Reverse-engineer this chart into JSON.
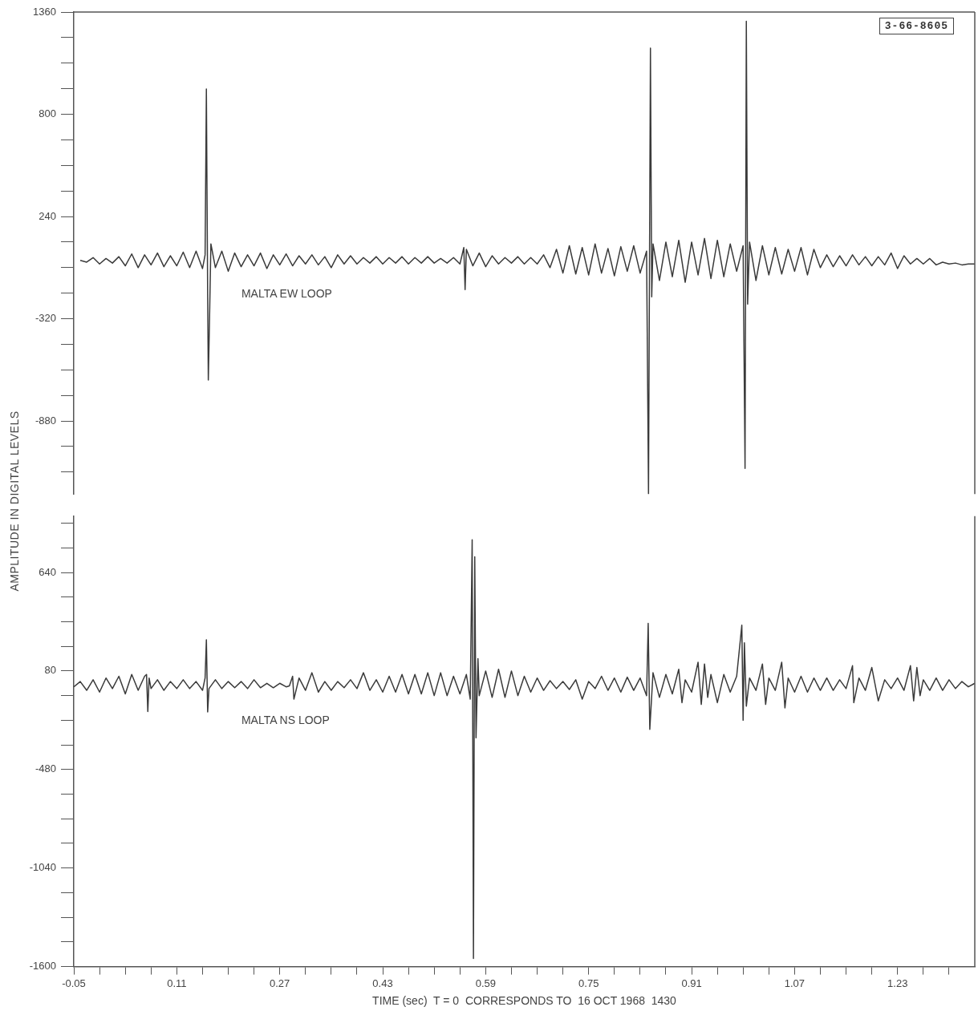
{
  "chart_data": [
    {
      "type": "line",
      "ylabel": "AMPLITUDE IN DIGITAL LEVELS",
      "annotations": [
        "3-66-8605"
      ],
      "tick_labels": "y",
      "marker": "none",
      "line_style": "solid",
      "grid": false,
      "legend": false,
      "xlim": [
        -0.05,
        1.35
      ],
      "ylim": [
        -1280,
        1360
      ],
      "yticks": [
        1360,
        {
          "value": 1220,
          "label": null
        },
        {
          "value": 1080,
          "label": null
        },
        {
          "value": 940,
          "label": null
        },
        800,
        {
          "value": 660,
          "label": null
        },
        {
          "value": 520,
          "label": null
        },
        {
          "value": 380,
          "label": null
        },
        240,
        {
          "value": 100,
          "label": null
        },
        {
          "value": -40,
          "label": null
        },
        {
          "value": -180,
          "label": null
        },
        -320,
        {
          "value": -460,
          "label": null
        },
        {
          "value": -600,
          "label": null
        },
        {
          "value": -740,
          "label": null
        },
        -880,
        {
          "value": -1020,
          "label": null
        },
        {
          "value": -1160,
          "label": null
        }
      ],
      "x": [
        -0.04,
        -0.03,
        -0.02,
        -0.01,
        0,
        0.01,
        0.02,
        0.03,
        0.04,
        0.05,
        0.06,
        0.07,
        0.08,
        0.09,
        0.1,
        0.11,
        0.12,
        0.13,
        0.14,
        0.15,
        0.154,
        0.156,
        0.158,
        0.159,
        0.161,
        0.163,
        0.17,
        0.18,
        0.19,
        0.2,
        0.21,
        0.22,
        0.23,
        0.24,
        0.25,
        0.26,
        0.27,
        0.28,
        0.29,
        0.3,
        0.31,
        0.32,
        0.33,
        0.34,
        0.35,
        0.36,
        0.37,
        0.38,
        0.39,
        0.4,
        0.41,
        0.42,
        0.43,
        0.44,
        0.45,
        0.46,
        0.47,
        0.48,
        0.49,
        0.5,
        0.51,
        0.52,
        0.53,
        0.54,
        0.55,
        0.556,
        0.558,
        0.56,
        0.57,
        0.58,
        0.59,
        0.6,
        0.61,
        0.62,
        0.63,
        0.64,
        0.65,
        0.66,
        0.67,
        0.68,
        0.69,
        0.7,
        0.71,
        0.72,
        0.73,
        0.74,
        0.75,
        0.76,
        0.77,
        0.78,
        0.79,
        0.8,
        0.81,
        0.82,
        0.83,
        0.84,
        0.843,
        0.846,
        0.848,
        0.85,
        0.86,
        0.87,
        0.88,
        0.89,
        0.9,
        0.91,
        0.92,
        0.93,
        0.94,
        0.95,
        0.96,
        0.97,
        0.98,
        0.99,
        0.993,
        0.995,
        0.997,
        1,
        1.01,
        1.02,
        1.03,
        1.04,
        1.05,
        1.06,
        1.07,
        1.08,
        1.09,
        1.1,
        1.11,
        1.12,
        1.13,
        1.14,
        1.15,
        1.16,
        1.17,
        1.18,
        1.19,
        1.2,
        1.21,
        1.22,
        1.23,
        1.24,
        1.25,
        1.26,
        1.27,
        1.28,
        1.29,
        1.3,
        1.31,
        1.32,
        1.33,
        1.34,
        1.35
      ],
      "series": [
        {
          "name": "MALTA EW LOOP",
          "color": "#3a3a3a",
          "values": [
            0,
            -10,
            15,
            -20,
            10,
            -15,
            20,
            -30,
            35,
            -40,
            30,
            -25,
            40,
            -35,
            25,
            -30,
            45,
            -40,
            50,
            -45,
            30,
            938,
            -200,
            -656,
            -300,
            90,
            -40,
            50,
            -60,
            40,
            -35,
            30,
            -30,
            40,
            -45,
            30,
            -25,
            35,
            -30,
            25,
            -20,
            30,
            -25,
            20,
            -40,
            30,
            -20,
            25,
            -20,
            15,
            -15,
            20,
            -20,
            15,
            -15,
            20,
            -20,
            15,
            -15,
            20,
            -15,
            10,
            -15,
            15,
            -20,
            70,
            -160,
            60,
            -30,
            40,
            -35,
            25,
            -20,
            15,
            -15,
            20,
            -20,
            15,
            -20,
            30,
            -40,
            60,
            -70,
            80,
            -75,
            70,
            -80,
            90,
            -70,
            65,
            -85,
            75,
            -60,
            80,
            -70,
            50,
            -1280,
            1162,
            -200,
            90,
            -110,
            100,
            -90,
            110,
            -120,
            100,
            -80,
            120,
            -100,
            110,
            -90,
            90,
            -60,
            80,
            -1140,
            1309,
            -240,
            100,
            -110,
            80,
            -80,
            70,
            -75,
            60,
            -60,
            70,
            -80,
            60,
            -40,
            30,
            -35,
            25,
            -30,
            30,
            -25,
            20,
            -30,
            20,
            -25,
            40,
            -45,
            25,
            -20,
            10,
            -20,
            10,
            -25,
            -10,
            -20,
            -15,
            -25,
            -20,
            -20
          ]
        }
      ]
    },
    {
      "type": "line",
      "xlabel": "TIME (sec)  T = 0  CORRESPONDS TO  16 OCT 1968  1430",
      "marker": "none",
      "line_style": "solid",
      "grid": false,
      "legend": false,
      "xlim": [
        -0.05,
        1.35
      ],
      "ylim": [
        -1600,
        960
      ],
      "xticks": [
        -0.05,
        {
          "value": -0.01,
          "label": null
        },
        {
          "value": 0.03,
          "label": null
        },
        {
          "value": 0.07,
          "label": null
        },
        0.11,
        {
          "value": 0.15,
          "label": null
        },
        {
          "value": 0.19,
          "label": null
        },
        {
          "value": 0.23,
          "label": null
        },
        0.27,
        {
          "value": 0.31,
          "label": null
        },
        {
          "value": 0.35,
          "label": null
        },
        {
          "value": 0.39,
          "label": null
        },
        0.43,
        {
          "value": 0.47,
          "label": null
        },
        {
          "value": 0.51,
          "label": null
        },
        {
          "value": 0.55,
          "label": null
        },
        0.59,
        {
          "value": 0.63,
          "label": null
        },
        {
          "value": 0.67,
          "label": null
        },
        {
          "value": 0.71,
          "label": null
        },
        0.75,
        {
          "value": 0.79,
          "label": null
        },
        {
          "value": 0.83,
          "label": null
        },
        {
          "value": 0.87,
          "label": null
        },
        0.91,
        {
          "value": 0.95,
          "label": null
        },
        {
          "value": 0.99,
          "label": null
        },
        {
          "value": 1.03,
          "label": null
        },
        1.07,
        {
          "value": 1.11,
          "label": null
        },
        {
          "value": 1.15,
          "label": null
        },
        {
          "value": 1.19,
          "label": null
        },
        1.23,
        {
          "value": 1.27,
          "label": null
        },
        {
          "value": 1.31,
          "label": null
        }
      ],
      "yticks": [
        {
          "value": 920,
          "label": null
        },
        {
          "value": 780,
          "label": null
        },
        640,
        {
          "value": 500,
          "label": null
        },
        {
          "value": 360,
          "label": null
        },
        {
          "value": 220,
          "label": null
        },
        80,
        {
          "value": -60,
          "label": null
        },
        {
          "value": -200,
          "label": null
        },
        {
          "value": -340,
          "label": null
        },
        -480,
        {
          "value": -620,
          "label": null
        },
        {
          "value": -760,
          "label": null
        },
        {
          "value": -900,
          "label": null
        },
        -1040,
        {
          "value": -1180,
          "label": null
        },
        {
          "value": -1320,
          "label": null
        },
        {
          "value": -1460,
          "label": null
        },
        -1600
      ],
      "x": [
        -0.05,
        -0.04,
        -0.03,
        -0.02,
        -0.01,
        0,
        0.01,
        0.02,
        0.03,
        0.04,
        0.05,
        0.06,
        0.063,
        0.065,
        0.067,
        0.07,
        0.08,
        0.09,
        0.1,
        0.11,
        0.12,
        0.13,
        0.14,
        0.15,
        0.154,
        0.156,
        0.158,
        0.16,
        0.17,
        0.18,
        0.19,
        0.2,
        0.21,
        0.22,
        0.23,
        0.24,
        0.25,
        0.26,
        0.27,
        0.28,
        0.285,
        0.29,
        0.292,
        0.3,
        0.31,
        0.32,
        0.33,
        0.34,
        0.35,
        0.36,
        0.37,
        0.38,
        0.39,
        0.4,
        0.41,
        0.42,
        0.43,
        0.44,
        0.45,
        0.46,
        0.47,
        0.48,
        0.49,
        0.5,
        0.51,
        0.52,
        0.53,
        0.54,
        0.55,
        0.56,
        0.566,
        0.569,
        0.571,
        0.573,
        0.575,
        0.578,
        0.58,
        0.59,
        0.6,
        0.61,
        0.62,
        0.63,
        0.64,
        0.65,
        0.66,
        0.67,
        0.68,
        0.69,
        0.7,
        0.71,
        0.72,
        0.73,
        0.74,
        0.75,
        0.76,
        0.77,
        0.78,
        0.79,
        0.8,
        0.81,
        0.82,
        0.83,
        0.84,
        0.8425,
        0.845,
        0.85,
        0.86,
        0.87,
        0.88,
        0.89,
        0.895,
        0.9,
        0.91,
        0.92,
        0.925,
        0.93,
        0.935,
        0.94,
        0.95,
        0.96,
        0.97,
        0.98,
        0.988,
        0.99,
        0.992,
        0.995,
        1,
        1.01,
        1.02,
        1.025,
        1.03,
        1.04,
        1.05,
        1.055,
        1.06,
        1.07,
        1.08,
        1.09,
        1.1,
        1.11,
        1.12,
        1.13,
        1.14,
        1.15,
        1.16,
        1.162,
        1.17,
        1.18,
        1.19,
        1.2,
        1.21,
        1.22,
        1.23,
        1.24,
        1.25,
        1.255,
        1.26,
        1.265,
        1.27,
        1.28,
        1.29,
        1.3,
        1.31,
        1.32,
        1.33,
        1.34,
        1.35
      ],
      "series": [
        {
          "name": "MALTA NS LOOP",
          "color": "#3a3a3a",
          "values": [
            -10,
            20,
            -30,
            30,
            -40,
            40,
            -20,
            50,
            -50,
            60,
            -30,
            50,
            60,
            -150,
            40,
            -20,
            30,
            -30,
            20,
            -20,
            30,
            -20,
            20,
            -30,
            40,
            257,
            -153,
            -20,
            30,
            -20,
            20,
            -15,
            20,
            -20,
            30,
            -15,
            10,
            -15,
            10,
            -10,
            -5,
            50,
            -80,
            40,
            -30,
            70,
            -40,
            20,
            -30,
            20,
            -15,
            30,
            -20,
            70,
            -30,
            30,
            -40,
            50,
            -40,
            60,
            -50,
            60,
            -50,
            70,
            -60,
            70,
            -60,
            50,
            -50,
            60,
            -80,
            826,
            -1554,
            729,
            -300,
            150,
            -60,
            80,
            -70,
            90,
            -70,
            80,
            -60,
            50,
            -40,
            40,
            -30,
            25,
            -20,
            20,
            -25,
            30,
            -80,
            20,
            -20,
            50,
            -30,
            40,
            -40,
            45,
            -30,
            40,
            -60,
            351,
            -252,
            70,
            -70,
            60,
            -50,
            90,
            -100,
            30,
            -40,
            130,
            -110,
            120,
            -70,
            60,
            -100,
            60,
            -40,
            50,
            340,
            -200,
            240,
            -120,
            40,
            -30,
            120,
            -110,
            40,
            -30,
            130,
            -130,
            40,
            -40,
            50,
            -40,
            40,
            -30,
            40,
            -30,
            30,
            -20,
            110,
            -100,
            40,
            -30,
            100,
            -90,
            30,
            -20,
            40,
            -30,
            110,
            -90,
            100,
            -60,
            30,
            -30,
            40,
            -30,
            30,
            -20,
            20,
            -10,
            10
          ]
        }
      ]
    }
  ]
}
